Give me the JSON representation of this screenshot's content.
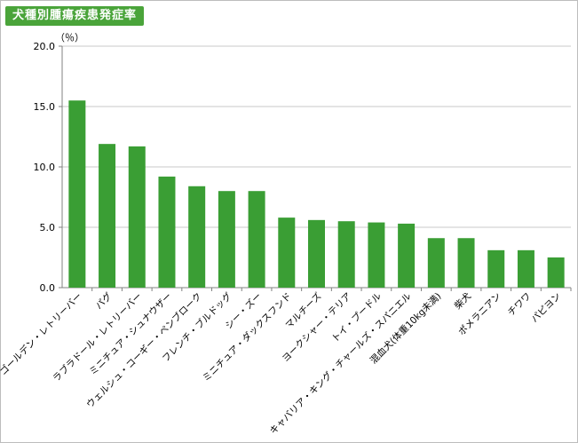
{
  "chart_data": {
    "type": "bar",
    "title": "犬種別腫瘍疾患発症率",
    "unit": "（％）",
    "ylim": [
      0,
      20
    ],
    "yticks": [
      "0.0",
      "5.0",
      "10.0",
      "15.0",
      "20.0"
    ],
    "grid": true,
    "bar_color": "#3a9e34",
    "categories": [
      "ゴールデン・レトリーバー",
      "パグ",
      "ラブラドール・レトリーバー",
      "ミニチュア・シュナウザー",
      "ウェルシュ・コーギー・ペンブローク",
      "フレンチ・ブルドッグ",
      "シー・ズー",
      "ミニチュア・ダックスフンド",
      "マルチーズ",
      "ヨークシャー・テリア",
      "トイ・プードル",
      "キャバリア・キング・チャールズ・スパニエル",
      "混血犬(体重10kg未満)",
      "柴犬",
      "ポメラニアン",
      "チワワ",
      "パピヨン"
    ],
    "values": [
      15.5,
      11.9,
      11.7,
      9.2,
      8.4,
      8.0,
      8.0,
      5.8,
      5.6,
      5.5,
      5.4,
      5.3,
      4.1,
      4.1,
      3.1,
      3.1,
      2.5
    ]
  }
}
